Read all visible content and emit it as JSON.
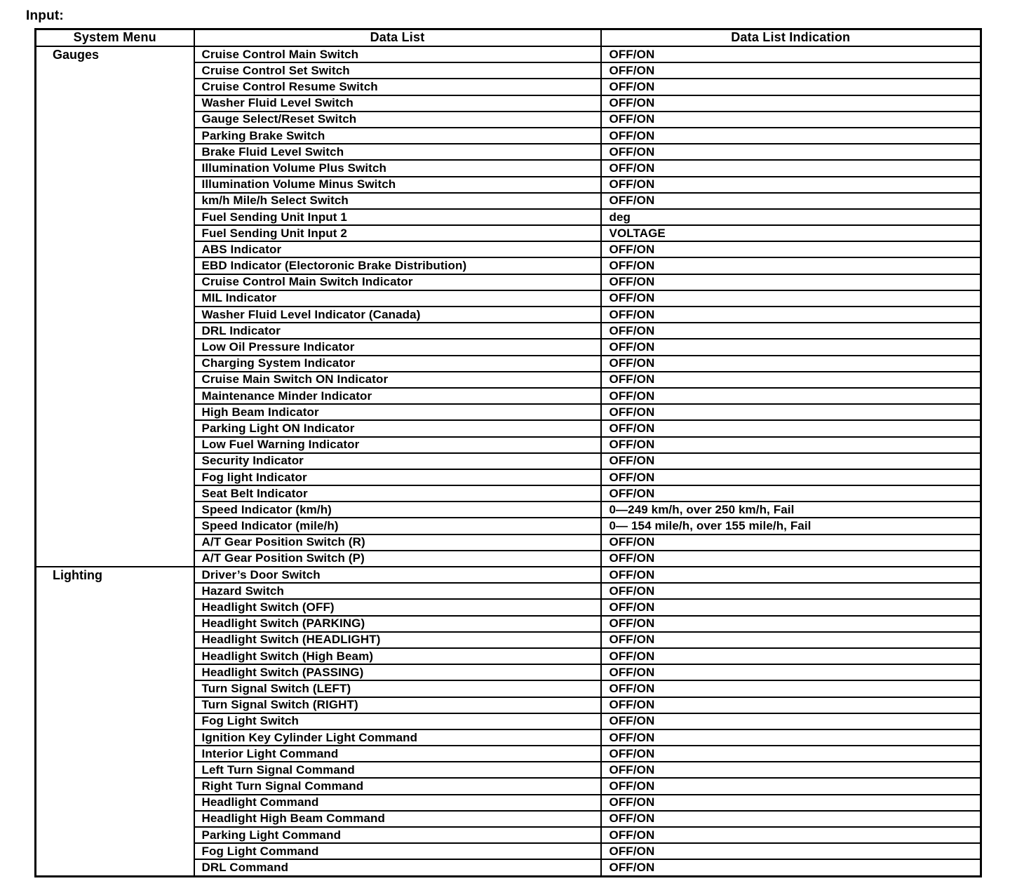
{
  "page_label": "Input:",
  "table": {
    "headers": [
      "System Menu",
      "Data List",
      "Data List Indication"
    ],
    "sections": [
      {
        "menu": "Gauges",
        "rows": [
          {
            "data_list": "Cruise Control Main Switch",
            "indication": "OFF/ON"
          },
          {
            "data_list": "Cruise Control Set Switch",
            "indication": "OFF/ON"
          },
          {
            "data_list": "Cruise Control Resume Switch",
            "indication": "OFF/ON"
          },
          {
            "data_list": "Washer Fluid Level Switch",
            "indication": "OFF/ON"
          },
          {
            "data_list": "Gauge Select/Reset Switch",
            "indication": "OFF/ON"
          },
          {
            "data_list": "Parking Brake Switch",
            "indication": "OFF/ON"
          },
          {
            "data_list": "Brake Fluid Level Switch",
            "indication": "OFF/ON"
          },
          {
            "data_list": "Illumination Volume Plus Switch",
            "indication": "OFF/ON"
          },
          {
            "data_list": "Illumination Volume Minus Switch",
            "indication": "OFF/ON"
          },
          {
            "data_list": "km/h Mile/h Select Switch",
            "indication": "OFF/ON"
          },
          {
            "data_list": "Fuel Sending Unit Input 1",
            "indication": "deg"
          },
          {
            "data_list": "Fuel Sending Unit Input 2",
            "indication": "VOLTAGE"
          },
          {
            "data_list": "ABS Indicator",
            "indication": "OFF/ON"
          },
          {
            "data_list": "EBD Indicator (Electoronic Brake Distribution)",
            "indication": "OFF/ON"
          },
          {
            "data_list": "Cruise Control Main Switch Indicator",
            "indication": "OFF/ON"
          },
          {
            "data_list": "MIL Indicator",
            "indication": "OFF/ON"
          },
          {
            "data_list": "Washer Fluid Level Indicator (Canada)",
            "indication": "OFF/ON"
          },
          {
            "data_list": "DRL Indicator",
            "indication": "OFF/ON"
          },
          {
            "data_list": "Low Oil Pressure Indicator",
            "indication": "OFF/ON"
          },
          {
            "data_list": "Charging System Indicator",
            "indication": "OFF/ON"
          },
          {
            "data_list": "Cruise Main Switch ON Indicator",
            "indication": "OFF/ON"
          },
          {
            "data_list": "Maintenance Minder Indicator",
            "indication": "OFF/ON"
          },
          {
            "data_list": "High Beam Indicator",
            "indication": "OFF/ON"
          },
          {
            "data_list": "Parking Light ON Indicator",
            "indication": "OFF/ON"
          },
          {
            "data_list": "Low Fuel Warning Indicator",
            "indication": "OFF/ON"
          },
          {
            "data_list": "Security Indicator",
            "indication": "OFF/ON"
          },
          {
            "data_list": "Fog light Indicator",
            "indication": "OFF/ON"
          },
          {
            "data_list": "Seat Belt Indicator",
            "indication": "OFF/ON"
          },
          {
            "data_list": "Speed Indicator (km/h)",
            "indication": "0—249 km/h, over 250 km/h, Fail"
          },
          {
            "data_list": "Speed Indicator (mile/h)",
            "indication": "0— 154 mile/h, over 155 mile/h, Fail"
          },
          {
            "data_list": "A/T Gear Position Switch (R)",
            "indication": "OFF/ON"
          },
          {
            "data_list": "A/T Gear Position Switch (P)",
            "indication": "OFF/ON"
          }
        ]
      },
      {
        "menu": "Lighting",
        "rows": [
          {
            "data_list": "Driver’s Door Switch",
            "indication": "OFF/ON"
          },
          {
            "data_list": "Hazard Switch",
            "indication": "OFF/ON"
          },
          {
            "data_list": "Headlight Switch (OFF)",
            "indication": "OFF/ON"
          },
          {
            "data_list": "Headlight Switch (PARKING)",
            "indication": "OFF/ON"
          },
          {
            "data_list": "Headlight Switch (HEADLIGHT)",
            "indication": "OFF/ON"
          },
          {
            "data_list": "Headlight Switch (High Beam)",
            "indication": "OFF/ON"
          },
          {
            "data_list": "Headlight Switch (PASSING)",
            "indication": "OFF/ON"
          },
          {
            "data_list": "Turn Signal Switch (LEFT)",
            "indication": "OFF/ON"
          },
          {
            "data_list": "Turn Signal Switch (RIGHT)",
            "indication": "OFF/ON"
          },
          {
            "data_list": "Fog Light Switch",
            "indication": "OFF/ON"
          },
          {
            "data_list": "Ignition Key Cylinder Light Command",
            "indication": "OFF/ON"
          },
          {
            "data_list": "Interior Light Command",
            "indication": "OFF/ON"
          },
          {
            "data_list": "Left Turn Signal Command",
            "indication": "OFF/ON"
          },
          {
            "data_list": "Right Turn Signal Command",
            "indication": "OFF/ON"
          },
          {
            "data_list": "Headlight Command",
            "indication": "OFF/ON"
          },
          {
            "data_list": "Headlight High Beam Command",
            "indication": "OFF/ON"
          },
          {
            "data_list": "Parking Light Command",
            "indication": "OFF/ON"
          },
          {
            "data_list": "Fog Light Command",
            "indication": "OFF/ON"
          },
          {
            "data_list": "DRL Command",
            "indication": "OFF/ON"
          }
        ]
      }
    ]
  }
}
